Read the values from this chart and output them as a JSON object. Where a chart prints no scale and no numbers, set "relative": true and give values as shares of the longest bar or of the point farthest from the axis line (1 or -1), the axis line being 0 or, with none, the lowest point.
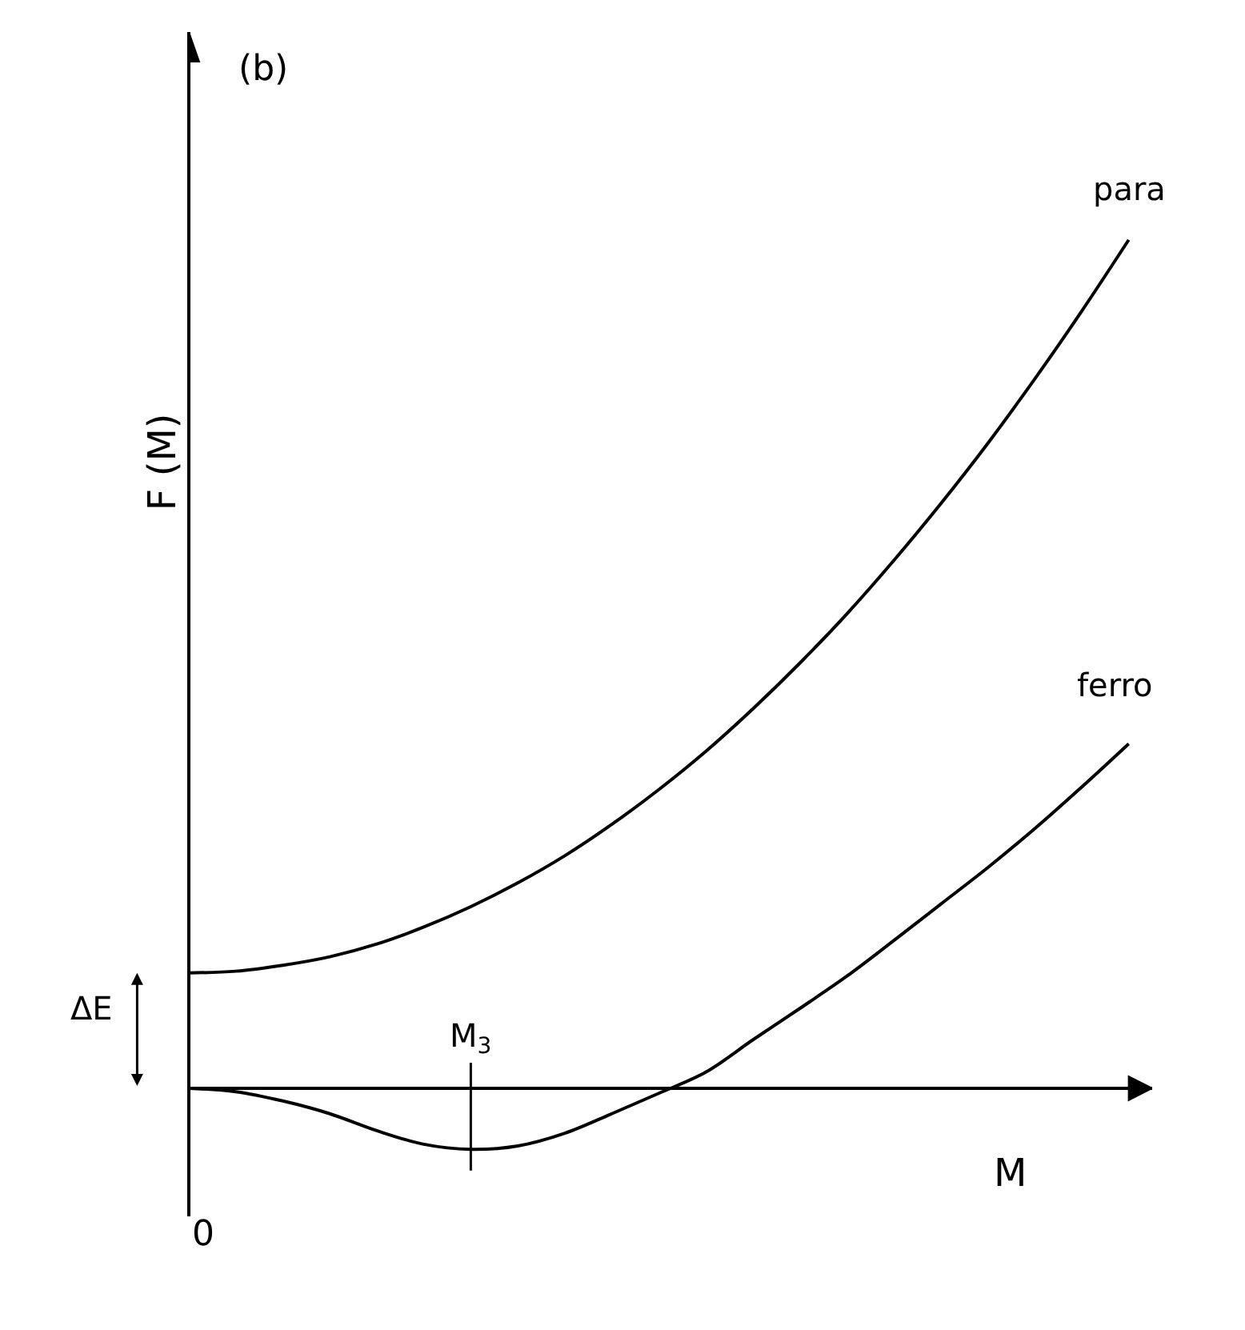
{
  "chart_data": {
    "type": "line",
    "relative": true,
    "xlabel": "M",
    "ylabel": "F (M)",
    "categories": [
      null,
      null,
      null,
      null,
      null,
      null,
      null,
      null,
      null,
      null,
      null,
      null,
      null,
      null,
      null,
      null,
      null,
      null,
      null,
      null,
      null
    ],
    "series": [
      {
        "name": "para",
        "color": "#000000",
        "values": [
          0.136,
          0.138,
          0.145,
          0.155,
          0.17,
          0.19,
          0.214,
          0.242,
          0.274,
          0.311,
          0.352,
          0.397,
          0.447,
          0.501,
          0.559,
          0.622,
          0.689,
          0.76,
          0.836,
          0.916,
          1
        ]
      },
      {
        "name": "ferro",
        "color": "#000000",
        "values": [
          0,
          -0.004,
          -0.015,
          -0.03,
          -0.05,
          -0.066,
          -0.072,
          -0.068,
          -0.053,
          -0.03,
          -0.006,
          0.019,
          0.057,
          0.094,
          0.132,
          0.174,
          0.217,
          0.26,
          0.306,
          0.355,
          0.406
        ]
      }
    ],
    "annotations": [
      "(b)",
      "0",
      "ΔE",
      {
        "text": "M$_{3}$",
        "y": -0.072
      }
    ],
    "line_style": "solid",
    "marker": "none"
  }
}
